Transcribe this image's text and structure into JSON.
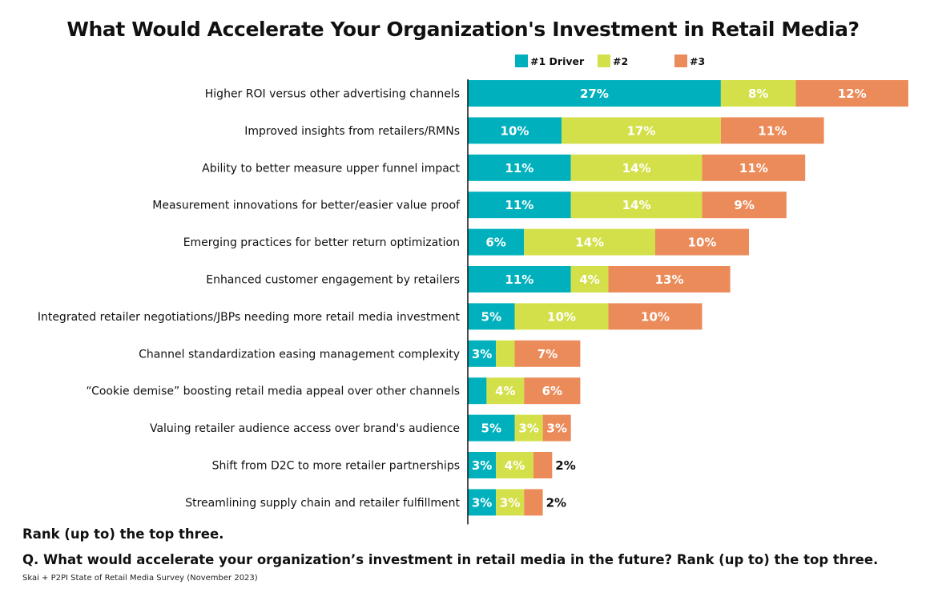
{
  "chart_data": {
    "type": "bar",
    "orientation": "horizontal",
    "stacked": true,
    "title": "What Would Accelerate Your Organization's Investment in Retail Media?",
    "categories": [
      "Higher ROI versus other advertising channels",
      "Improved insights from retailers/RMNs",
      "Ability to better measure upper funnel impact",
      "Measurement innovations for better/easier value proof",
      "Emerging practices for better return optimization",
      "Enhanced customer engagement by retailers",
      "Integrated retailer negotiations/JBPs needing more retail media investment",
      "Channel standardization easing management complexity",
      "“Cookie demise” boosting retail media appeal over other channels",
      "Valuing retailer audience access over brand's audience",
      "Shift from D2C to more retailer partnerships",
      "Streamlining supply chain and retailer fulfillment"
    ],
    "series": [
      {
        "name": "#1 Driver",
        "color": "#00b1bd",
        "values": [
          27,
          10,
          11,
          11,
          6,
          11,
          5,
          3,
          2,
          5,
          3,
          3
        ]
      },
      {
        "name": "#2",
        "color": "#d4e04a",
        "values": [
          8,
          17,
          14,
          14,
          14,
          4,
          10,
          2,
          4,
          3,
          4,
          3
        ]
      },
      {
        "name": "#3",
        "color": "#eb8b5a",
        "values": [
          12,
          11,
          11,
          9,
          10,
          13,
          10,
          7,
          6,
          3,
          2,
          2
        ]
      }
    ],
    "value_suffix": "%",
    "legend": "top-center",
    "grid": false,
    "xlim": [
      0,
      47
    ]
  },
  "footer": {
    "note": "Rank (up to) the top three.",
    "question": "Q. What would accelerate your organization’s investment in retail media in the future? Rank (up to) the top three.",
    "source": "Skai + P2PI State of Retail Media Survey (November 2023)"
  }
}
